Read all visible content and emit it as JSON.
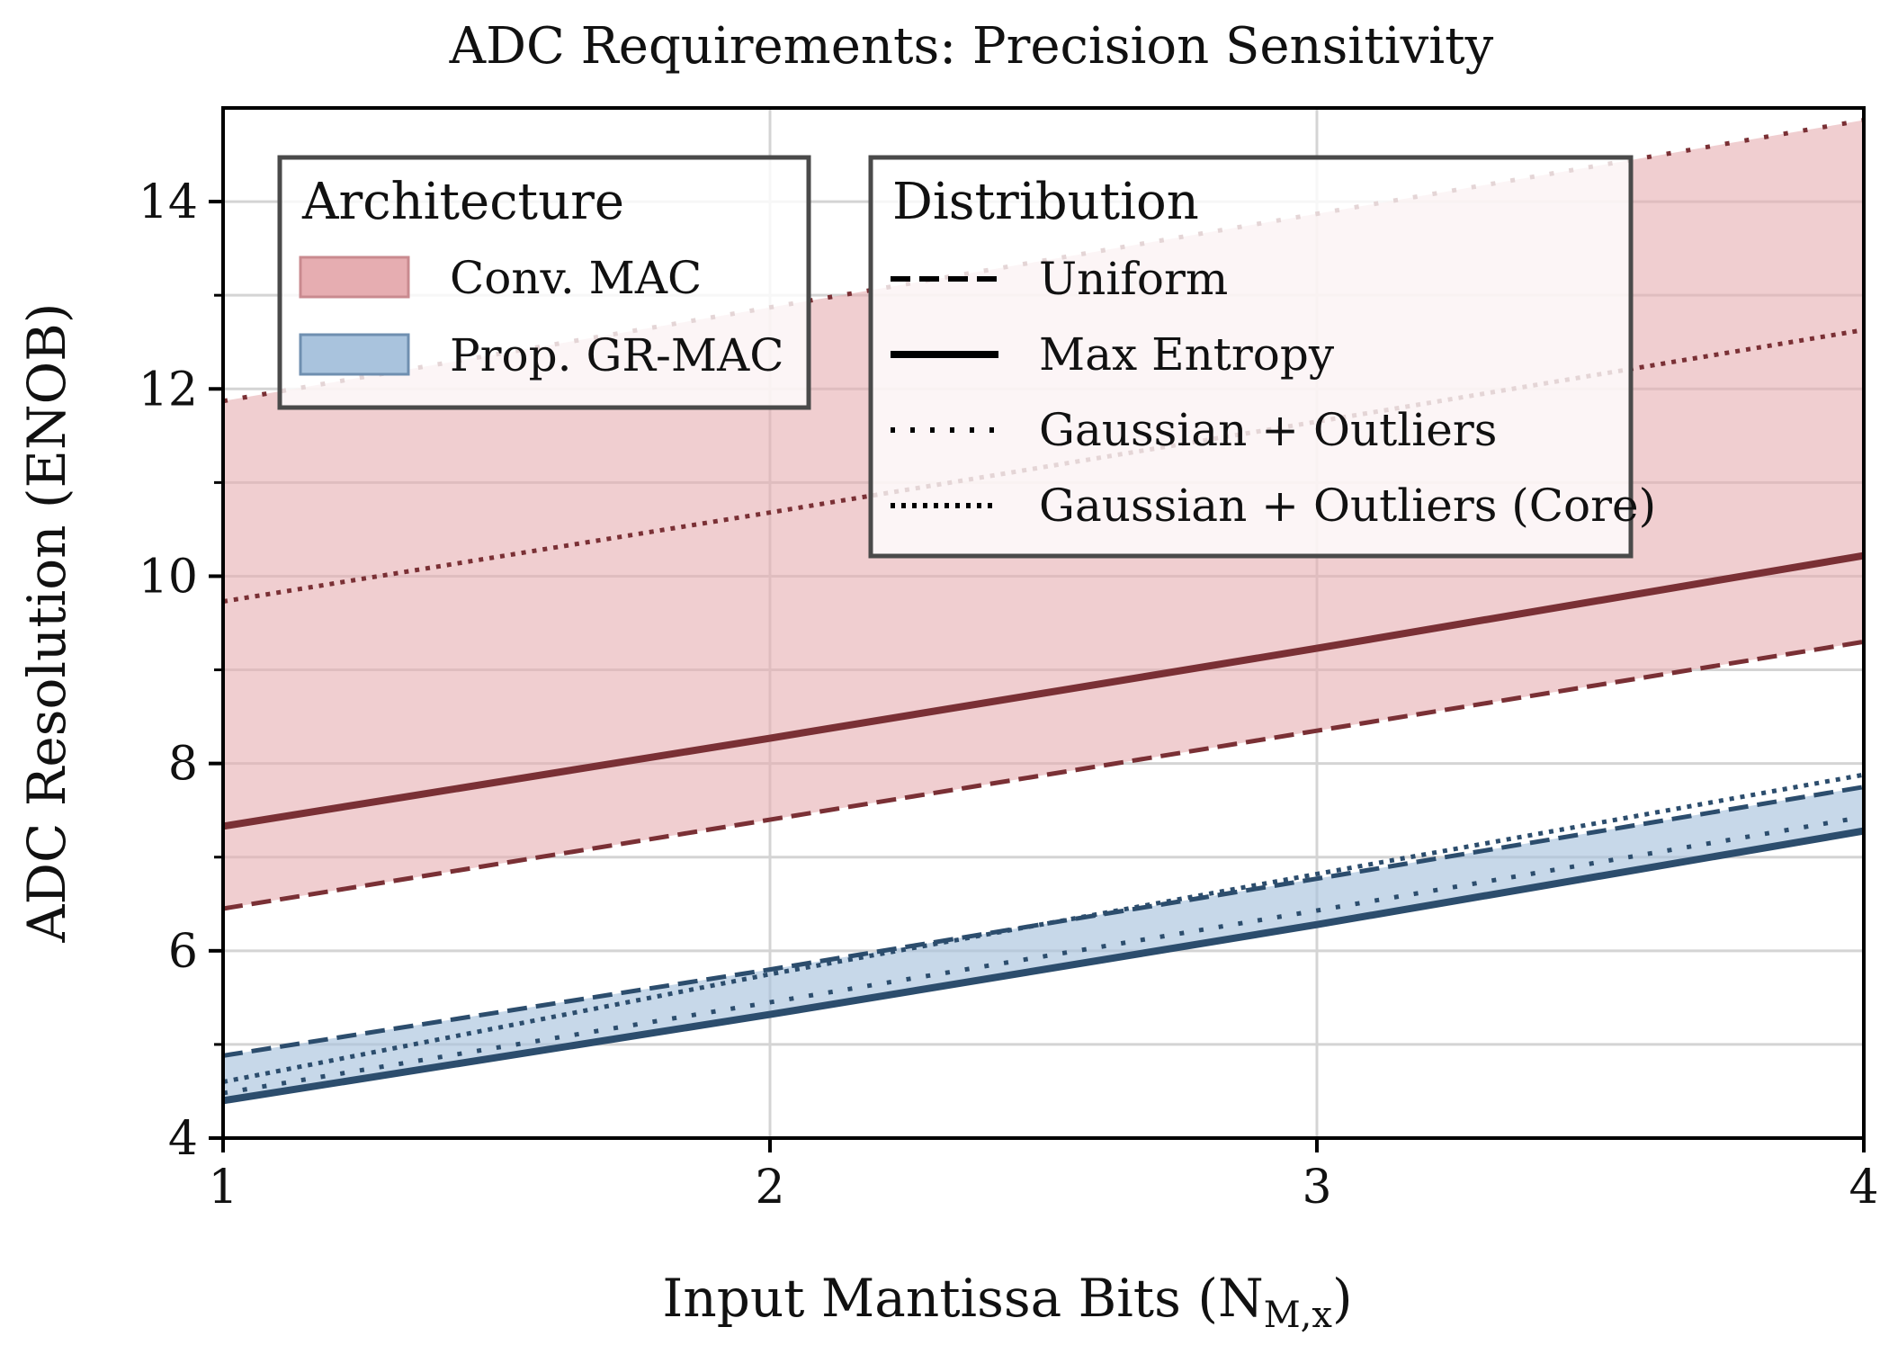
{
  "chart_data": {
    "type": "line",
    "title": "ADC Requirements: Precision Sensitivity",
    "xlabel": "Input Mantissa Bits (N",
    "xlabel_subscript": "M,x",
    "xlabel_close": ")",
    "ylabel": "ADC Resolution (ENOB)",
    "xlim": [
      1,
      4
    ],
    "ylim": [
      4,
      15
    ],
    "x_ticks": [
      1,
      2,
      3,
      4
    ],
    "x_tick_labels": [
      "1",
      "2",
      "3",
      "4"
    ],
    "y_ticks": [
      4,
      6,
      8,
      10,
      12,
      14
    ],
    "y_tick_labels": [
      "4",
      "6",
      "8",
      "10",
      "12",
      "14"
    ],
    "y_minor_ticks": [
      5,
      7,
      9,
      11,
      13
    ],
    "grid": true,
    "x": [
      1,
      2,
      3,
      4
    ],
    "series": [
      {
        "name": "Conv. MAC - Uniform",
        "architecture": "Conv. MAC",
        "distribution": "Uniform",
        "values": [
          6.45,
          7.4,
          8.35,
          9.3
        ]
      },
      {
        "name": "Conv. MAC - Max Entropy",
        "architecture": "Conv. MAC",
        "distribution": "Max Entropy",
        "values": [
          7.33,
          8.27,
          9.23,
          10.22
        ]
      },
      {
        "name": "Conv. MAC - Gaussian + Outliers",
        "architecture": "Conv. MAC",
        "distribution": "Gaussian + Outliers",
        "values": [
          11.87,
          12.87,
          13.87,
          14.87
        ]
      },
      {
        "name": "Conv. MAC - Gaussian + Outliers (Core)",
        "architecture": "Conv. MAC",
        "distribution": "Gaussian + Outliers (Core)",
        "values": [
          9.73,
          10.68,
          11.65,
          12.63
        ]
      },
      {
        "name": "Prop. GR-MAC - Uniform",
        "architecture": "Prop. GR-MAC",
        "distribution": "Uniform",
        "values": [
          4.88,
          5.8,
          6.77,
          7.75
        ]
      },
      {
        "name": "Prop. GR-MAC - Max Entropy",
        "architecture": "Prop. GR-MAC",
        "distribution": "Max Entropy",
        "values": [
          4.4,
          5.32,
          6.28,
          7.28
        ]
      },
      {
        "name": "Prop. GR-MAC - Gaussian + Outliers",
        "architecture": "Prop. GR-MAC",
        "distribution": "Gaussian + Outliers",
        "values": [
          4.48,
          5.45,
          6.43,
          7.43
        ]
      },
      {
        "name": "Prop. GR-MAC - Gaussian + Outliers (Core)",
        "architecture": "Prop. GR-MAC",
        "distribution": "Gaussian + Outliers (Core)",
        "values": [
          4.6,
          5.75,
          6.82,
          7.88
        ]
      }
    ],
    "bands": [
      {
        "architecture": "Conv. MAC",
        "lower": "Conv. MAC - Uniform",
        "upper": "Conv. MAC - Gaussian + Outliers"
      },
      {
        "architecture": "Prop. GR-MAC",
        "lower": "Prop. GR-MAC - Max Entropy",
        "upper": "Prop. GR-MAC - Uniform"
      }
    ],
    "legend_architecture": {
      "title": "Architecture",
      "placement": "top-left",
      "entries": [
        "Conv. MAC",
        "Prop. GR-MAC"
      ]
    },
    "legend_distribution": {
      "title": "Distribution",
      "placement": "top-center",
      "entries": [
        "Uniform",
        "Max Entropy",
        "Gaussian + Outliers",
        "Gaussian + Outliers (Core)"
      ]
    },
    "colors": {
      "conv_line": "#7a3035",
      "conv_fill": "#e6adb1",
      "gr_line": "#2c4d6d",
      "gr_fill": "#a9c3dd",
      "grid": "#d4d4d4",
      "axis": "#000000"
    }
  }
}
